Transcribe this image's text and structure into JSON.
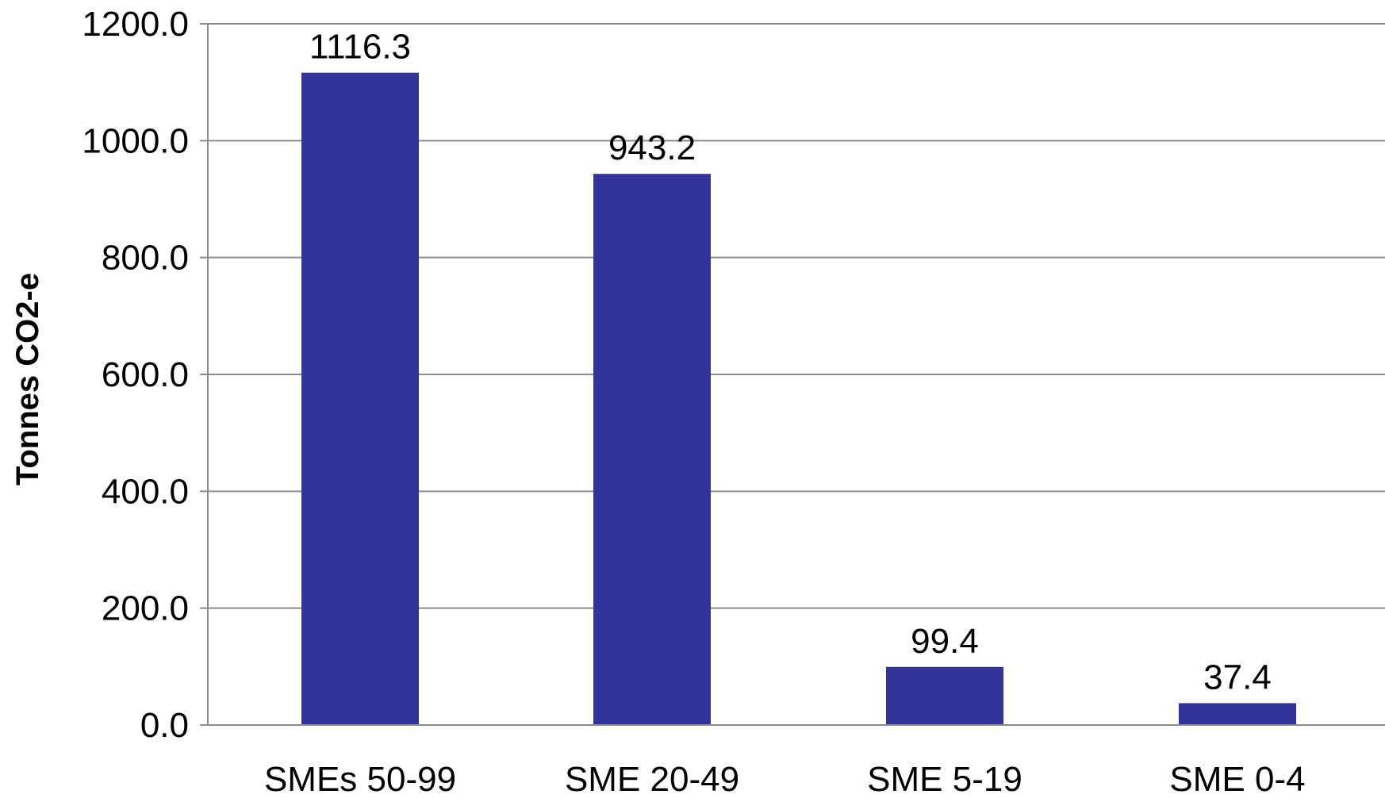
{
  "chart_data": {
    "type": "bar",
    "title": "",
    "xlabel": "",
    "ylabel": "Tonnes CO2-e",
    "categories": [
      "SMEs 50-99",
      "SME 20-49",
      "SME 5-19",
      "SME 0-4"
    ],
    "values": [
      1116.3,
      943.2,
      99.4,
      37.4
    ],
    "value_labels": [
      "1116.3",
      "943.2",
      "99.4",
      "37.4"
    ],
    "ylim": [
      0,
      1200
    ],
    "yticks": [
      0,
      200,
      400,
      600,
      800,
      1000,
      1200
    ],
    "ytick_labels": [
      "0.0",
      "200.0",
      "400.0",
      "600.0",
      "800.0",
      "1000.0",
      "1200.0"
    ],
    "grid": true,
    "legend": "none",
    "bar_color": "#333399",
    "grid_color": "#8c8c8c"
  }
}
